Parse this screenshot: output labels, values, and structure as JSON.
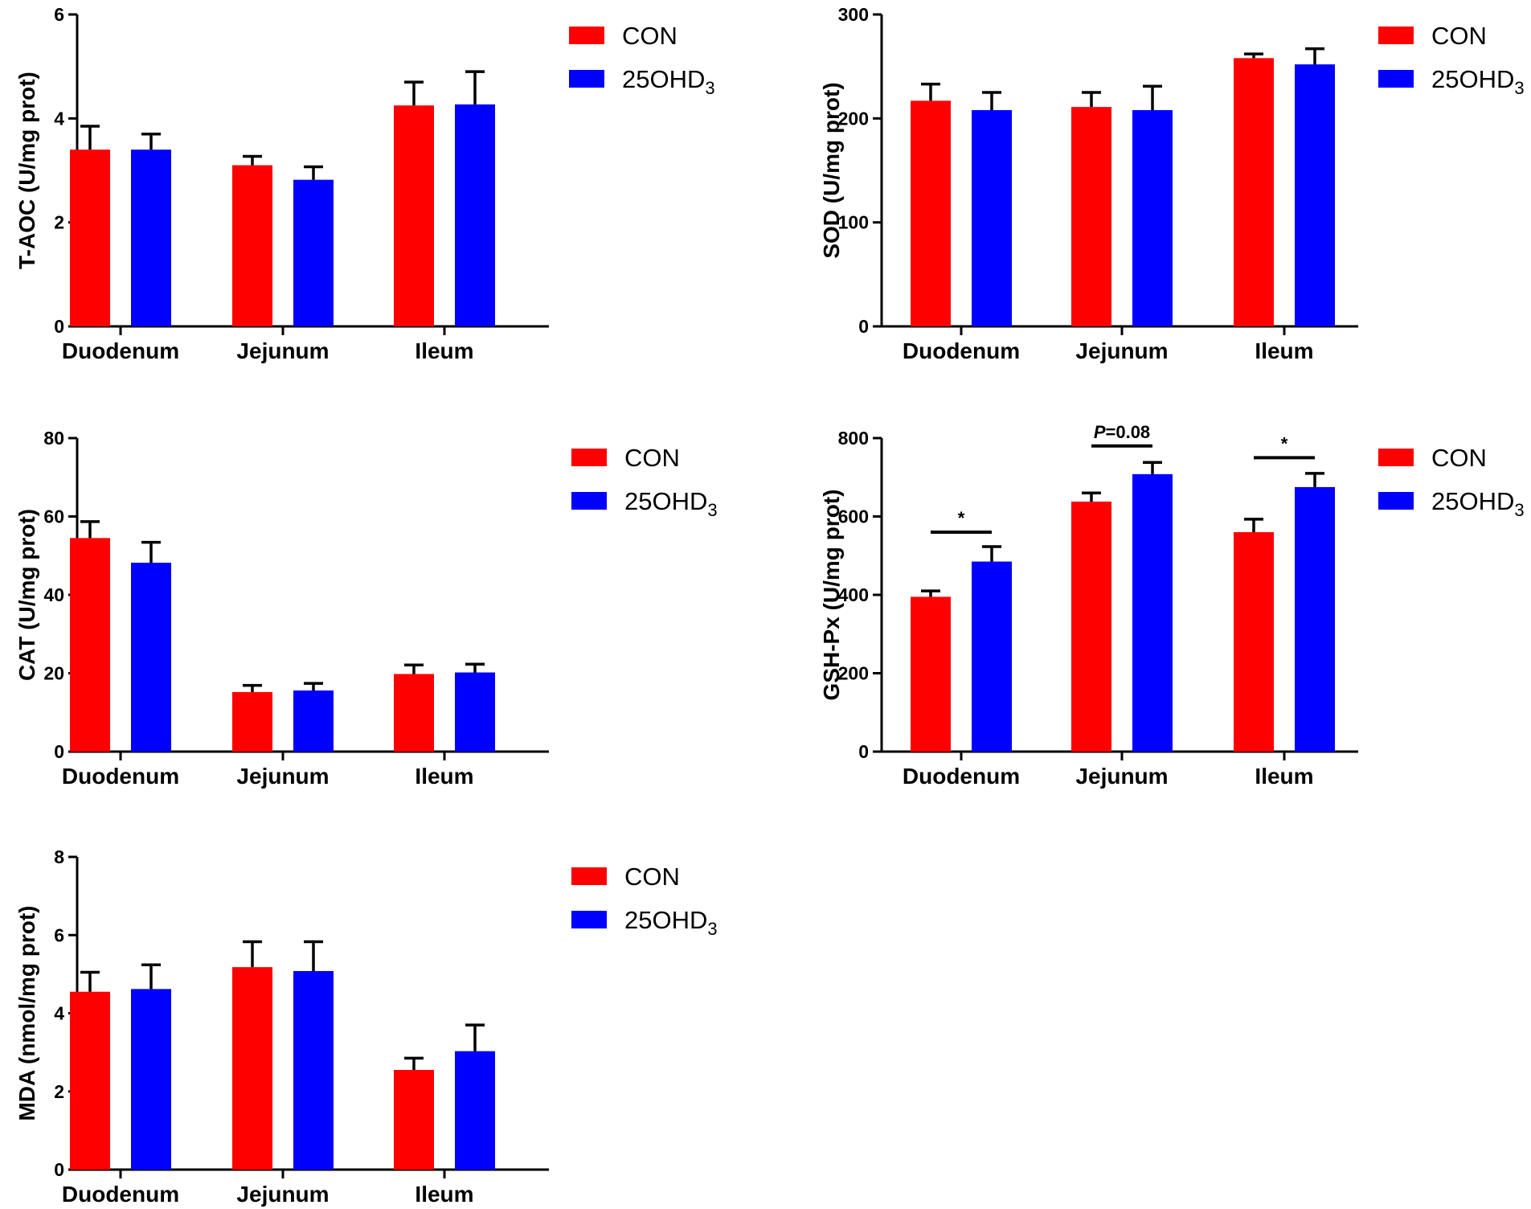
{
  "series_styles": [
    {
      "name": "CON",
      "color": "#ff0000"
    },
    {
      "name": "25OHD3",
      "color": "#0000ff"
    }
  ],
  "chart_data": [
    {
      "id": "t-aoc",
      "type": "bar",
      "ylabel": "T-AOC (U/mg prot)",
      "categories": [
        "Duodenum",
        "Jejunum",
        "Ileum"
      ],
      "ylim": [
        0,
        6
      ],
      "yticks": [
        0,
        2,
        4,
        6
      ],
      "legend": {
        "placement": "right",
        "labels": [
          {
            "text": "CON",
            "sub": ""
          },
          {
            "text": "25OHD",
            "sub": "3"
          }
        ]
      },
      "series": [
        {
          "name": "CON",
          "values": [
            3.4,
            3.1,
            4.25
          ],
          "errors": [
            0.45,
            0.17,
            0.45
          ]
        },
        {
          "name": "25OHD3",
          "values": [
            3.4,
            2.82,
            4.27
          ],
          "errors": [
            0.3,
            0.25,
            0.63
          ]
        }
      ],
      "annotations": []
    },
    {
      "id": "sod",
      "type": "bar",
      "ylabel": "SOD (U/mg prot)",
      "categories": [
        "Duodenum",
        "Jejunum",
        "Ileum"
      ],
      "ylim": [
        0,
        300
      ],
      "yticks": [
        0,
        100,
        200,
        300
      ],
      "legend": {
        "placement": "right",
        "labels": [
          {
            "text": "CON",
            "sub": ""
          },
          {
            "text": "25OHD",
            "sub": "3"
          }
        ]
      },
      "series": [
        {
          "name": "CON",
          "values": [
            217,
            211,
            258
          ],
          "errors": [
            16,
            14,
            4
          ]
        },
        {
          "name": "25OHD3",
          "values": [
            208,
            208,
            252
          ],
          "errors": [
            17,
            23,
            15
          ]
        }
      ],
      "annotations": []
    },
    {
      "id": "cat",
      "type": "bar",
      "ylabel": "CAT (U/mg prot)",
      "categories": [
        "Duodenum",
        "Jejunum",
        "Ileum"
      ],
      "ylim": [
        0,
        80
      ],
      "yticks": [
        0,
        20,
        40,
        60,
        80
      ],
      "legend": {
        "placement": "right",
        "labels": [
          {
            "text": "CON",
            "sub": ""
          },
          {
            "text": "25OHD",
            "sub": "3"
          }
        ]
      },
      "series": [
        {
          "name": "CON",
          "values": [
            54.5,
            15.2,
            19.8
          ],
          "errors": [
            4.2,
            1.7,
            2.3
          ]
        },
        {
          "name": "25OHD3",
          "values": [
            48.2,
            15.6,
            20.2
          ],
          "errors": [
            5.2,
            1.8,
            2.1
          ]
        }
      ],
      "annotations": []
    },
    {
      "id": "gsh-px",
      "type": "bar",
      "ylabel": "GSH-Px (U/mg prot)",
      "categories": [
        "Duodenum",
        "Jejunum",
        "Ileum"
      ],
      "ylim": [
        0,
        800
      ],
      "yticks": [
        0,
        200,
        400,
        600,
        800
      ],
      "legend": {
        "placement": "right",
        "labels": [
          {
            "text": "CON",
            "sub": ""
          },
          {
            "text": "25OHD",
            "sub": "3"
          }
        ]
      },
      "series": [
        {
          "name": "CON",
          "values": [
            395,
            638,
            560
          ],
          "errors": [
            15,
            22,
            33
          ]
        },
        {
          "name": "25OHD3",
          "values": [
            485,
            708,
            675
          ],
          "errors": [
            38,
            30,
            35
          ]
        }
      ],
      "annotations": [
        {
          "category": 0,
          "level": 560,
          "label": "*",
          "italic_prefix": ""
        },
        {
          "category": 1,
          "level": 780,
          "label": "=0.08",
          "italic_prefix": "P"
        },
        {
          "category": 2,
          "level": 750,
          "label": "*",
          "italic_prefix": ""
        }
      ]
    },
    {
      "id": "mda",
      "type": "bar",
      "ylabel": "MDA (nmol/mg prot)",
      "categories": [
        "Duodenum",
        "Jejunum",
        "Ileum"
      ],
      "ylim": [
        0,
        8
      ],
      "yticks": [
        0,
        2,
        4,
        6,
        8
      ],
      "legend": {
        "placement": "right",
        "labels": [
          {
            "text": "CON",
            "sub": ""
          },
          {
            "text": "25OHD",
            "sub": "3"
          }
        ]
      },
      "series": [
        {
          "name": "CON",
          "values": [
            4.55,
            5.18,
            2.55
          ],
          "errors": [
            0.5,
            0.65,
            0.3
          ]
        },
        {
          "name": "25OHD3",
          "values": [
            4.62,
            5.08,
            3.03
          ],
          "errors": [
            0.62,
            0.75,
            0.67
          ]
        }
      ],
      "annotations": []
    }
  ]
}
